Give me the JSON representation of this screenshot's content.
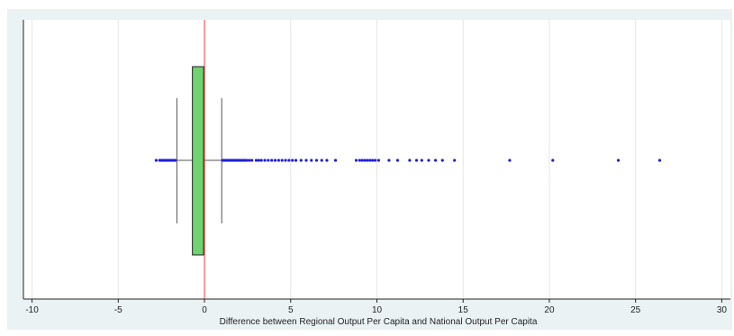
{
  "chart_data": {
    "type": "boxplot",
    "orientation": "horizontal",
    "title": "",
    "xlabel": "Difference between Regional Output Per Capita and National Output Per Capita",
    "ylabel": "",
    "xlim": [
      -10.5,
      30.5
    ],
    "xticks": [
      -10,
      -5,
      0,
      5,
      10,
      15,
      20,
      25,
      30
    ],
    "grid": true,
    "reference_line": {
      "x": 0,
      "color": "#ff3b3b"
    },
    "box": {
      "whisker_low": -1.6,
      "q1": -0.7,
      "median": -0.05,
      "q3": 0.0,
      "whisker_high": 1.0,
      "fill": "#6fd36f"
    },
    "outliers": [
      -2.8,
      -2.6,
      -2.5,
      -2.4,
      -2.3,
      -2.2,
      -2.1,
      -2.0,
      -1.9,
      -1.8,
      -1.75,
      -1.7,
      1.05,
      1.15,
      1.25,
      1.35,
      1.45,
      1.55,
      1.65,
      1.75,
      1.85,
      1.95,
      2.05,
      2.15,
      2.25,
      2.35,
      2.45,
      2.6,
      2.75,
      3.0,
      3.15,
      3.3,
      3.5,
      3.7,
      3.9,
      4.1,
      4.3,
      4.5,
      4.7,
      4.9,
      5.1,
      5.3,
      5.6,
      5.9,
      6.2,
      6.5,
      6.8,
      7.1,
      7.6,
      8.8,
      9.0,
      9.15,
      9.3,
      9.45,
      9.6,
      9.75,
      9.9,
      10.1,
      10.7,
      11.2,
      11.9,
      12.3,
      12.6,
      13.0,
      13.4,
      13.8,
      14.5,
      17.7,
      20.2,
      24.0,
      26.4
    ],
    "outlier_color": "#1f1fd8"
  },
  "colors": {
    "frame_bg": "#eaf2f3",
    "plot_bg": "#ffffff",
    "grid": "#e6e6e6",
    "axis": "#222222"
  }
}
